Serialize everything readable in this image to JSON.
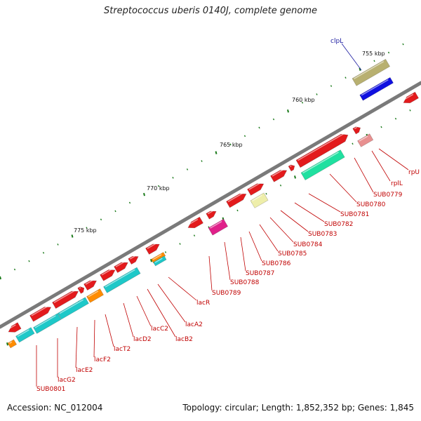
{
  "title": "Streptococcus uberis 0140J, complete genome",
  "footer": {
    "accession": "Accession: NC_012004",
    "topology": "Topology: circular; Length: 1,852,352 bp; Genes: 1,845"
  },
  "kbp_labels": [
    "755 kbp",
    "760 kbp",
    "765 kbp",
    "770 kbp",
    "775 kbp"
  ],
  "special_label": "clpL",
  "gene_labels": [
    "rpU",
    "rplL",
    "SUB0779",
    "SUB0780",
    "SUB0781",
    "SUB0782",
    "SUB0783",
    "SUB0784",
    "SUB0785",
    "SUB0786",
    "SUB0787",
    "SUB0788",
    "SUB0789",
    "lacR",
    "lacA2",
    "lacB2",
    "lacC2",
    "lacD2",
    "lacT2",
    "lacF2",
    "lacE2",
    "lacG2",
    "SUB0801"
  ],
  "colors": {
    "backbone": "#7a7a7a",
    "gene_red": "#e31a1c",
    "tick_green": "#1a7a1a",
    "clpl_box": "#b8b070",
    "clpl_blue": "#1010e0",
    "cyan": "#1ec8c8",
    "teal_green": "#20e0a0",
    "magenta": "#e0208a",
    "yellow": "#eeeeaa",
    "pink": "#e89090",
    "orange": "#ff8c00",
    "label_red": "#c00000",
    "label_blue": "#1a1aa0"
  }
}
